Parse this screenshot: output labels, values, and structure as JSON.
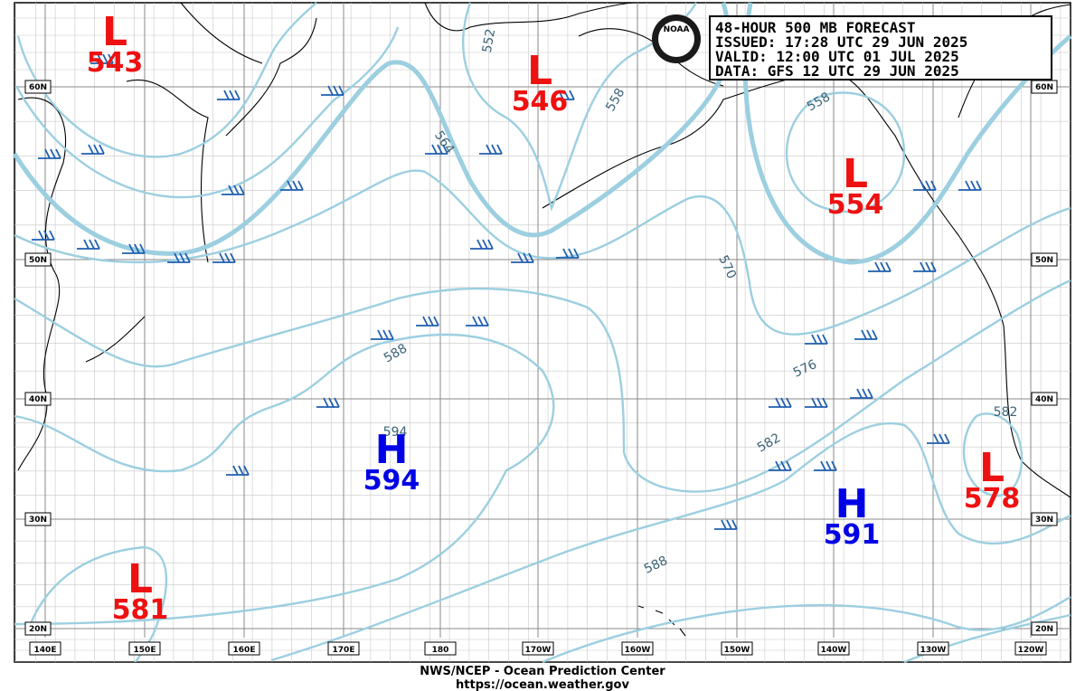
{
  "header": {
    "lines": [
      "48-HOUR 500 MB FORECAST",
      "ISSUED: 17:28 UTC 29 JUN 2025",
      "VALID:  12:00 UTC 01 JUL 2025",
      "DATA:  GFS 12 UTC 29 JUN 2025"
    ]
  },
  "logo": "NOAA",
  "centers": [
    {
      "type": "L",
      "value": 543
    },
    {
      "type": "L",
      "value": 546
    },
    {
      "type": "L",
      "value": 554
    },
    {
      "type": "L",
      "value": 578
    },
    {
      "type": "L",
      "value": 581
    },
    {
      "type": "H",
      "value": 594
    },
    {
      "type": "H",
      "value": 591
    }
  ],
  "contour_labels": [
    552,
    558,
    564,
    570,
    576,
    582,
    588,
    588,
    594,
    558,
    582
  ],
  "longitude_labels": [
    "140E",
    "150E",
    "160E",
    "170E",
    "180",
    "170W",
    "160W",
    "150W",
    "140W",
    "130W",
    "120W"
  ],
  "latitude_labels": [
    "60N",
    "50N",
    "40N",
    "30N",
    "20N"
  ],
  "footer": [
    "NWS/NCEP - Ocean Prediction Center",
    "https://ocean.weather.gov"
  ]
}
